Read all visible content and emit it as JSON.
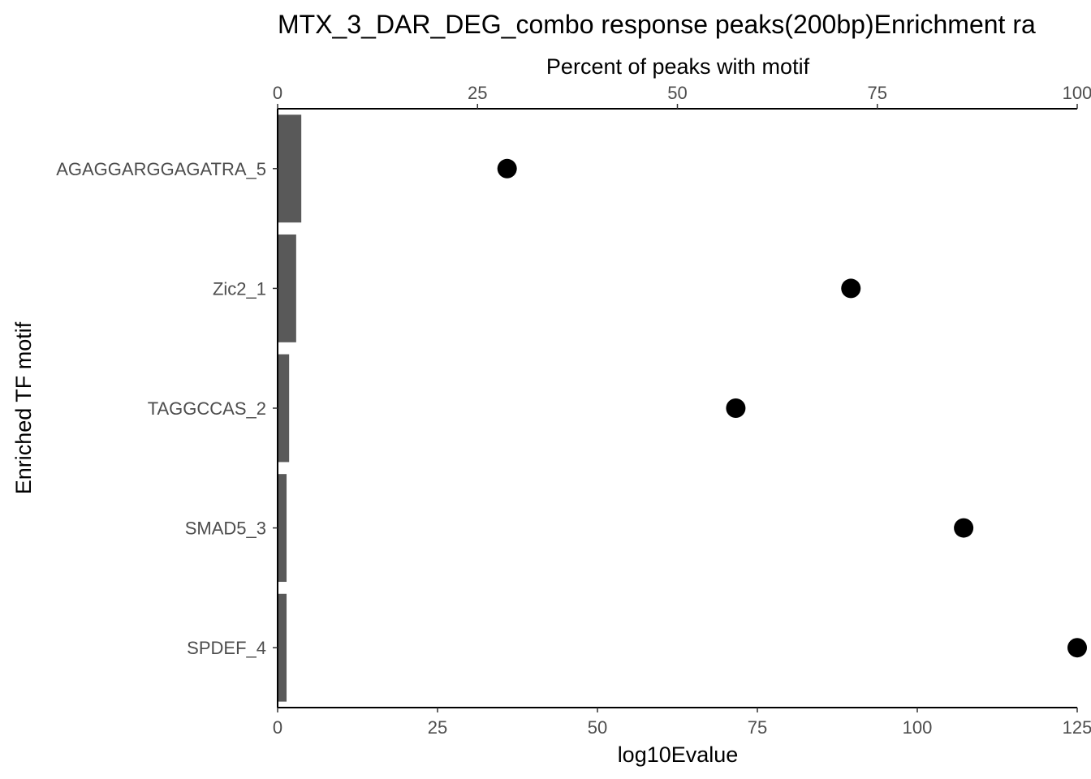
{
  "chart_data": {
    "type": "bar",
    "title": "MTX_3_DAR_DEG_combo response peaks(200bp)Enrichment ra",
    "ylabel": "Enriched TF motif",
    "categories": [
      "AGAGGARGGAGATRA_5",
      "Zic2_1",
      "TAGGCCAS_2",
      "SMAD5_3",
      "SPDEF_4"
    ],
    "bottom_axis": {
      "label": "log10Evalue",
      "range": [
        0,
        125
      ],
      "ticks": [
        "0",
        "25",
        "50",
        "75",
        "100",
        "125"
      ]
    },
    "top_axis": {
      "label": "Percent of peaks with motif",
      "range": [
        0,
        100
      ],
      "ticks": [
        "0",
        "25",
        "50",
        "75",
        "100"
      ]
    },
    "series": [
      {
        "type": "bar",
        "axis": "log10Evalue",
        "values": [
          3.7,
          2.9,
          1.8,
          1.4,
          1.4
        ],
        "color": "#595959"
      },
      {
        "type": "scatter",
        "axis": "Percent of peaks with motif",
        "values": [
          28.7,
          71.7,
          57.3,
          85.8,
          100
        ],
        "color": "#000000"
      }
    ],
    "grid": false,
    "legend": "none"
  }
}
